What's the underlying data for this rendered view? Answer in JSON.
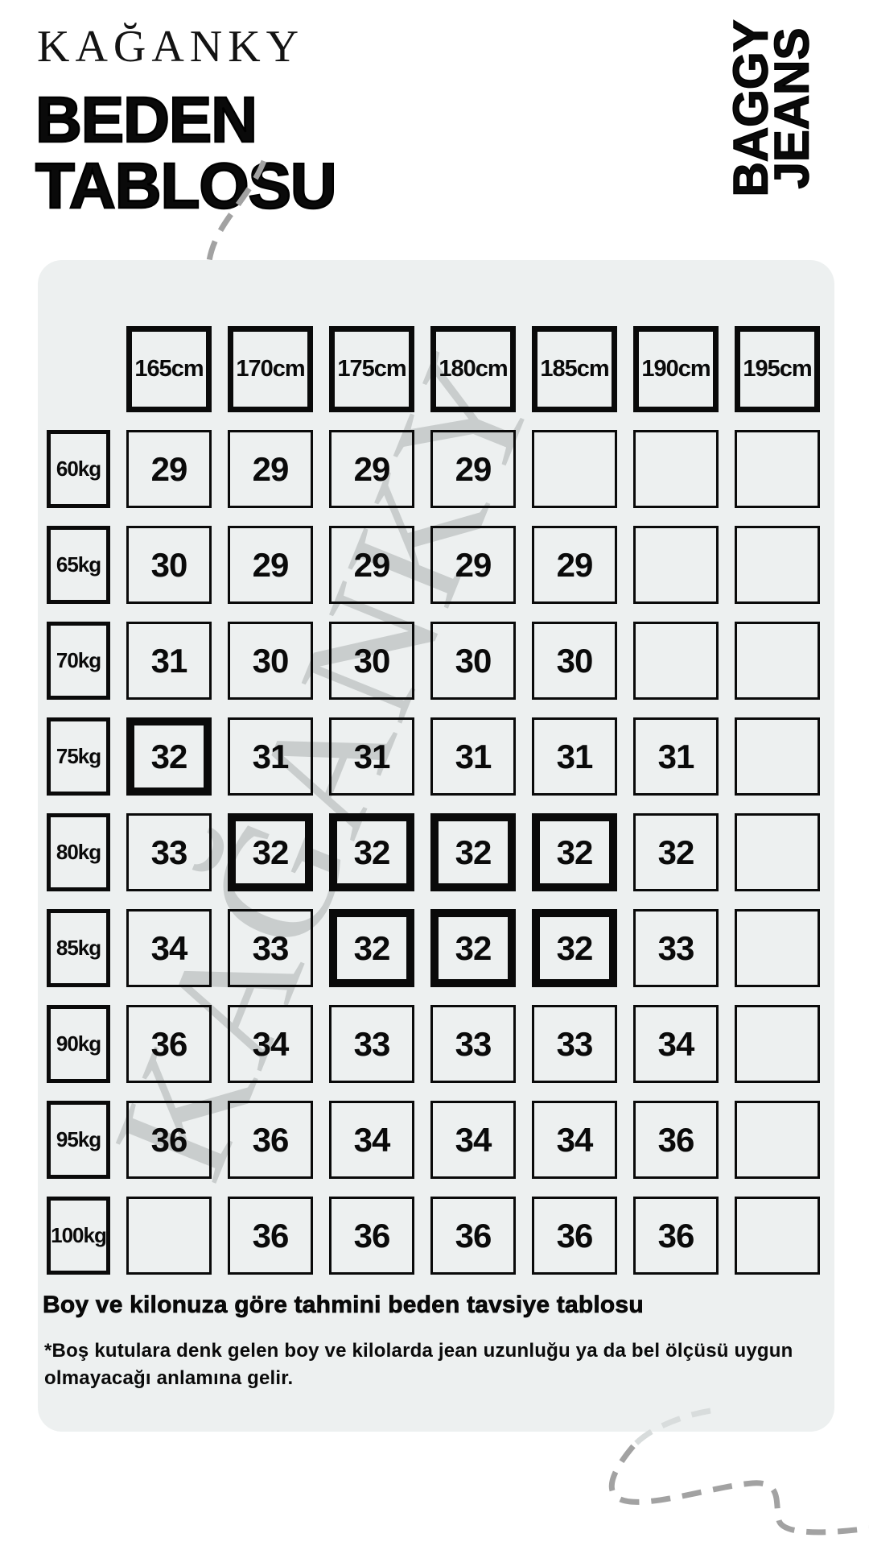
{
  "brand": "KAĞANKY",
  "title": {
    "line1": "BEDEN",
    "line2": "TABLOSU"
  },
  "side_label": {
    "line1": "BAGGY",
    "line2": "JEANS"
  },
  "watermark": "KAĞANKY",
  "chart_data": {
    "type": "table",
    "title": "BEDEN TABLOSU",
    "columns": [
      "165cm",
      "170cm",
      "175cm",
      "180cm",
      "185cm",
      "190cm",
      "195cm"
    ],
    "rows": [
      {
        "weight": "60kg",
        "values": [
          "29",
          "29",
          "29",
          "29",
          "",
          "",
          ""
        ],
        "bold": []
      },
      {
        "weight": "65kg",
        "values": [
          "30",
          "29",
          "29",
          "29",
          "29",
          "",
          ""
        ],
        "bold": []
      },
      {
        "weight": "70kg",
        "values": [
          "31",
          "30",
          "30",
          "30",
          "30",
          "",
          ""
        ],
        "bold": []
      },
      {
        "weight": "75kg",
        "values": [
          "32",
          "31",
          "31",
          "31",
          "31",
          "31",
          ""
        ],
        "bold": [
          0
        ]
      },
      {
        "weight": "80kg",
        "values": [
          "33",
          "32",
          "32",
          "32",
          "32",
          "32",
          ""
        ],
        "bold": [
          1,
          2,
          3,
          4
        ]
      },
      {
        "weight": "85kg",
        "values": [
          "34",
          "33",
          "32",
          "32",
          "32",
          "33",
          ""
        ],
        "bold": [
          2,
          3,
          4
        ]
      },
      {
        "weight": "90kg",
        "values": [
          "36",
          "34",
          "33",
          "33",
          "33",
          "34",
          ""
        ],
        "bold": []
      },
      {
        "weight": "95kg",
        "values": [
          "36",
          "36",
          "34",
          "34",
          "34",
          "36",
          ""
        ],
        "bold": []
      },
      {
        "weight": "100kg",
        "values": [
          "",
          "36",
          "36",
          "36",
          "36",
          "36",
          ""
        ],
        "bold": []
      }
    ]
  },
  "caption": "Boy ve kilonuza göre tahmini beden tavsiye tablosu",
  "footnote": "*Boş kutulara denk gelen boy ve kilolarda jean uzunluğu ya da bel ölçüsü uygun olmayacağı anlamına gelir.",
  "colors": {
    "background": "#ffffff",
    "panel": "#edf0f0",
    "ink": "#0a0a0a",
    "watermark": "#c9cdcd",
    "squiggle_dark": "#a2a2a2",
    "squiggle_light": "#d8dcdc"
  }
}
